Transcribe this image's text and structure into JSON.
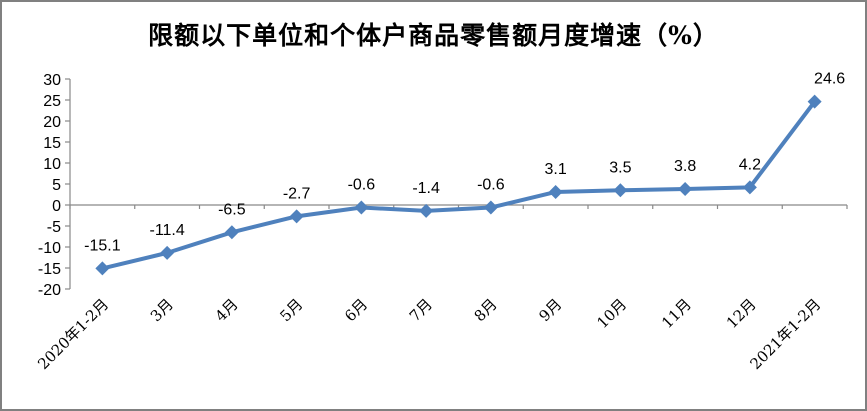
{
  "frame": {
    "background": "#FFFFFF",
    "border_color": "#808080"
  },
  "chart_data": {
    "type": "line",
    "title": "限额以下单位和个体户商品零售额月度增速（%）",
    "categories": [
      "2020年1-2月",
      "3月",
      "4月",
      "5月",
      "6月",
      "7月",
      "8月",
      "9月",
      "10月",
      "11月",
      "12月",
      "2021年1-2月"
    ],
    "values": [
      -15.1,
      -11.4,
      -6.5,
      -2.7,
      -0.6,
      -1.4,
      -0.6,
      3.1,
      3.5,
      3.8,
      4.2,
      24.6
    ],
    "data_labels": [
      "-15.1",
      "-11.4",
      "-6.5",
      "-2.7",
      "-0.6",
      "-1.4",
      "-0.6",
      "3.1",
      "3.5",
      "3.8",
      "4.2",
      "24.6"
    ],
    "xlabel": "",
    "ylabel": "",
    "ylim": [
      -20,
      30
    ],
    "ytick_step": 5,
    "yticks": [
      30,
      25,
      20,
      15,
      10,
      5,
      0,
      -5,
      -10,
      -15,
      -20
    ],
    "grid": "zero-line-only",
    "legend": "none",
    "marker": "diamond",
    "line_color": "#4F81BD",
    "axis_color": "#898989",
    "text_color": "#000000"
  }
}
